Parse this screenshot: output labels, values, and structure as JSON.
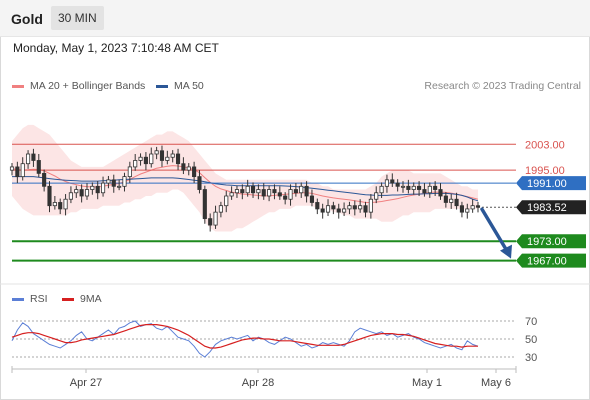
{
  "header": {
    "asset": "Gold",
    "interval": "30 MIN"
  },
  "timestamp": "Monday, May 1, 2023 7:10:48 AM CET",
  "legend": {
    "bollinger_label": "MA 20 + Bollinger Bands",
    "ma50_label": "MA 50",
    "rsi_label": "RSI",
    "rsi_ma_label": "9MA",
    "copyright": "Research © 2023 Trading Central"
  },
  "colors": {
    "bollinger": "#f08080",
    "ma50": "#2b5797",
    "rsi": "#5b7fd6",
    "rsi_ma": "#d62020",
    "resistance": "#d9534f",
    "pivot": "#2f6fc2",
    "support": "#1e8a1e",
    "last_price": "#222222",
    "arrow": "#2b5797"
  },
  "chart_data": [
    {
      "type": "candlestick",
      "x_labels": [
        "Apr 27",
        "Apr 28",
        "May 1",
        "May 6"
      ],
      "ylim": [
        1961,
        2013
      ],
      "levels": [
        {
          "value": 2003.0,
          "label": "2003.00",
          "kind": "resistance"
        },
        {
          "value": 1995.0,
          "label": "1995.00",
          "kind": "resistance"
        },
        {
          "value": 1991.0,
          "label": "1991.00",
          "kind": "pivot"
        },
        {
          "value": 1983.52,
          "label": "1983.52",
          "kind": "last"
        },
        {
          "value": 1973.0,
          "label": "1973.00",
          "kind": "support"
        },
        {
          "value": 1967.0,
          "label": "1967.00",
          "kind": "support"
        }
      ],
      "close": [
        1996,
        1993,
        1997,
        2000,
        1998,
        1994,
        1990,
        1984,
        1985,
        1983,
        1986,
        1988,
        1989,
        1987,
        1989,
        1990,
        1988,
        1991,
        1992,
        1990,
        1990,
        1993,
        1996,
        1998,
        1999,
        1997,
        2000,
        2001,
        1998,
        1999,
        2000,
        1997,
        1995,
        1996,
        1993,
        1989,
        1980,
        1978,
        1982,
        1984,
        1987,
        1988,
        1989,
        1988,
        1990,
        1988,
        1989,
        1987,
        1989,
        1988,
        1987,
        1986,
        1989,
        1988,
        1990,
        1987,
        1985,
        1983,
        1982,
        1984,
        1983,
        1982,
        1983,
        1984,
        1983,
        1984,
        1982,
        1986,
        1988,
        1990,
        1992,
        1991,
        1990,
        1990,
        1989,
        1990,
        1989,
        1988,
        1990,
        1989,
        1987,
        1985,
        1986,
        1984,
        1982,
        1983,
        1984,
        1983.52
      ],
      "ma20": [
        1995.5,
        1995.2,
        1995,
        1995.1,
        1995.3,
        1995.2,
        1994.8,
        1994,
        1993.2,
        1992.2,
        1991.5,
        1990.9,
        1990.5,
        1990.1,
        1989.9,
        1989.8,
        1989.8,
        1990,
        1990.3,
        1990.6,
        1990.9,
        1991.4,
        1992.1,
        1993,
        1993.8,
        1994.4,
        1995,
        1995.6,
        1995.9,
        1996.2,
        1996.4,
        1996.3,
        1996,
        1995.7,
        1995.1,
        1994.2,
        1992.7,
        1991.2,
        1990,
        1989.2,
        1988.7,
        1988.2,
        1987.9,
        1987.6,
        1987.5,
        1987.3,
        1987.2,
        1987,
        1987.1,
        1987.2,
        1987.4,
        1987.5,
        1987.7,
        1987.8,
        1988,
        1988,
        1987.8,
        1987.4,
        1987,
        1986.7,
        1986.4,
        1986.2,
        1986,
        1985.8,
        1985.5,
        1985.3,
        1985,
        1985,
        1985.1,
        1985.3,
        1985.6,
        1985.9,
        1986.2,
        1986.6,
        1987,
        1987.3,
        1987.6,
        1987.8,
        1988.1,
        1988.2,
        1988.2,
        1988.1,
        1987.9,
        1987.6,
        1987.2,
        1986.8,
        1986.4,
        1986
      ],
      "upper_band": [
        2004,
        2006,
        2008,
        2009,
        2009,
        2008,
        2007,
        2006,
        2004,
        2002,
        2000,
        1998,
        1997,
        1996,
        1996,
        1996,
        1996,
        1996,
        1997,
        1998,
        1999,
        2000,
        2001,
        2002,
        2003,
        2004,
        2005,
        2006,
        2006,
        2007,
        2007,
        2006,
        2005,
        2004,
        2002,
        2000,
        1998,
        1996,
        1994,
        1993,
        1992,
        1992,
        1992,
        1992,
        1992,
        1992,
        1992,
        1992,
        1992,
        1992,
        1992,
        1992,
        1992,
        1992,
        1992,
        1992,
        1991,
        1991,
        1990,
        1990,
        1989,
        1989,
        1989,
        1989,
        1989,
        1989,
        1989,
        1990,
        1991,
        1993,
        1994,
        1995,
        1995,
        1995,
        1995,
        1994,
        1994,
        1994,
        1994,
        1994,
        1994,
        1993,
        1992,
        1991,
        1990,
        1990,
        1989,
        1989
      ],
      "lower_band": [
        1987,
        1985,
        1983,
        1982,
        1981,
        1981,
        1981,
        1981,
        1981,
        1981,
        1981,
        1982,
        1982,
        1983,
        1983,
        1983,
        1983,
        1984,
        1984,
        1984,
        1984,
        1985,
        1985,
        1986,
        1986,
        1987,
        1987,
        1988,
        1988,
        1988,
        1989,
        1989,
        1988,
        1986,
        1984,
        1982,
        1979,
        1977,
        1976,
        1976,
        1976,
        1976,
        1977,
        1977,
        1978,
        1979,
        1980,
        1981,
        1982,
        1982,
        1983,
        1983,
        1983,
        1984,
        1984,
        1984,
        1984,
        1983,
        1983,
        1983,
        1982,
        1982,
        1981,
        1981,
        1980,
        1980,
        1980,
        1980,
        1980,
        1979,
        1979,
        1979,
        1980,
        1981,
        1981,
        1982,
        1982,
        1982,
        1982,
        1983,
        1983,
        1983,
        1983,
        1983,
        1983,
        1983,
        1983,
        1983
      ],
      "ma50": [
        1993,
        1993,
        1993,
        1993,
        1993,
        1992.8,
        1992.6,
        1992.4,
        1992.2,
        1992,
        1991.9,
        1991.8,
        1991.7,
        1991.6,
        1991.6,
        1991.6,
        1991.6,
        1991.7,
        1991.8,
        1991.9,
        1992,
        1992.1,
        1992.2,
        1992.3,
        1992.4,
        1992.5,
        1992.6,
        1992.6,
        1992.6,
        1992.6,
        1992.6,
        1992.5,
        1992.3,
        1992.1,
        1991.9,
        1991.7,
        1991.4,
        1991.1,
        1990.8,
        1990.6,
        1990.4,
        1990.3,
        1990.2,
        1990.2,
        1990.2,
        1990.2,
        1990.2,
        1990.2,
        1990.2,
        1990.2,
        1990.2,
        1990.1,
        1990,
        1989.9,
        1989.8,
        1989.6,
        1989.4,
        1989.2,
        1989,
        1988.8,
        1988.6,
        1988.4,
        1988.2,
        1988,
        1987.8,
        1987.6,
        1987.4,
        1987.3,
        1987.2,
        1987.2,
        1987.2,
        1987.3,
        1987.3,
        1987.4,
        1987.5,
        1987.6,
        1987.6,
        1987.7,
        1987.7,
        1987.8,
        1987.8,
        1987.8,
        1987.7,
        1987.5,
        1987.2,
        1986.7,
        1986,
        1985.5
      ],
      "projection": {
        "from": 1983.52,
        "to": 1967.0
      }
    },
    {
      "type": "line",
      "title": "RSI",
      "ylim": [
        20,
        80
      ],
      "y_ticks": [
        "70",
        "50",
        "30"
      ],
      "series": [
        {
          "name": "RSI",
          "values": [
            48,
            60,
            68,
            64,
            56,
            52,
            48,
            44,
            42,
            40,
            44,
            48,
            54,
            58,
            50,
            48,
            52,
            56,
            60,
            55,
            62,
            64,
            68,
            70,
            64,
            66,
            67,
            62,
            60,
            64,
            58,
            52,
            50,
            48,
            42,
            34,
            30,
            36,
            44,
            48,
            50,
            52,
            50,
            52,
            54,
            48,
            52,
            50,
            46,
            44,
            48,
            52,
            50,
            46,
            42,
            44,
            40,
            42,
            46,
            44,
            46,
            44,
            42,
            48,
            58,
            62,
            60,
            58,
            56,
            58,
            54,
            56,
            52,
            54,
            56,
            52,
            50,
            46,
            44,
            42,
            40,
            42,
            44,
            40,
            38,
            48,
            44,
            42
          ]
        },
        {
          "name": "9MA",
          "values": [
            52,
            54,
            56,
            57,
            57,
            56,
            54,
            52,
            50,
            48,
            46,
            46,
            47,
            49,
            50,
            51,
            52,
            53,
            54,
            55,
            57,
            59,
            61,
            63,
            65,
            66,
            66,
            66,
            65,
            64,
            62,
            60,
            57,
            54,
            50,
            46,
            42,
            40,
            40,
            41,
            43,
            45,
            47,
            49,
            50,
            51,
            51,
            50,
            50,
            49,
            48,
            48,
            48,
            47,
            46,
            45,
            44,
            43,
            43,
            43,
            43,
            43,
            44,
            46,
            48,
            50,
            52,
            54,
            55,
            56,
            56,
            56,
            55,
            55,
            54,
            53,
            51,
            49,
            47,
            45,
            44,
            43,
            42,
            42,
            41,
            42,
            42,
            42
          ]
        }
      ]
    }
  ]
}
